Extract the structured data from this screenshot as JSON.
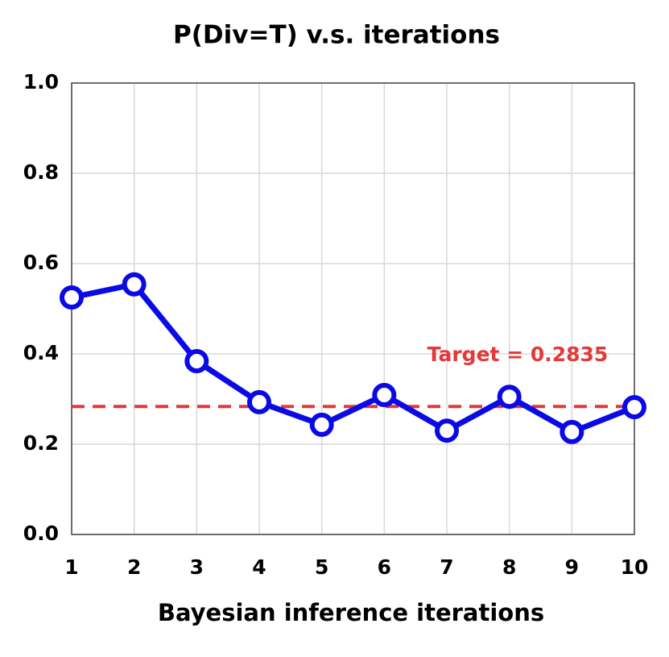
{
  "chart_data": {
    "type": "line",
    "title": "P(Div=T) v.s. iterations",
    "x_label": "Bayesian inference iterations",
    "x": [
      1,
      2,
      3,
      4,
      5,
      6,
      7,
      8,
      9,
      10
    ],
    "series": [
      {
        "color": "#0a0ae6",
        "values": [
          0.525,
          0.554,
          0.384,
          0.293,
          0.243,
          0.309,
          0.23,
          0.305,
          0.227,
          0.282
        ]
      }
    ],
    "target": 0.2835,
    "target_label": "Target = 0.2835",
    "target_color": "#e23a3a",
    "xlim": [
      1,
      10
    ],
    "xticks": [
      1,
      2,
      3,
      4,
      5,
      6,
      7,
      8,
      9,
      10
    ],
    "ylim": [
      0,
      1
    ],
    "yticks": [
      {
        "value": 0,
        "label": "0.0"
      },
      0.2,
      0.4,
      0.6,
      0.8,
      {
        "value": 1,
        "label": "1.0"
      }
    ],
    "grid": true
  }
}
